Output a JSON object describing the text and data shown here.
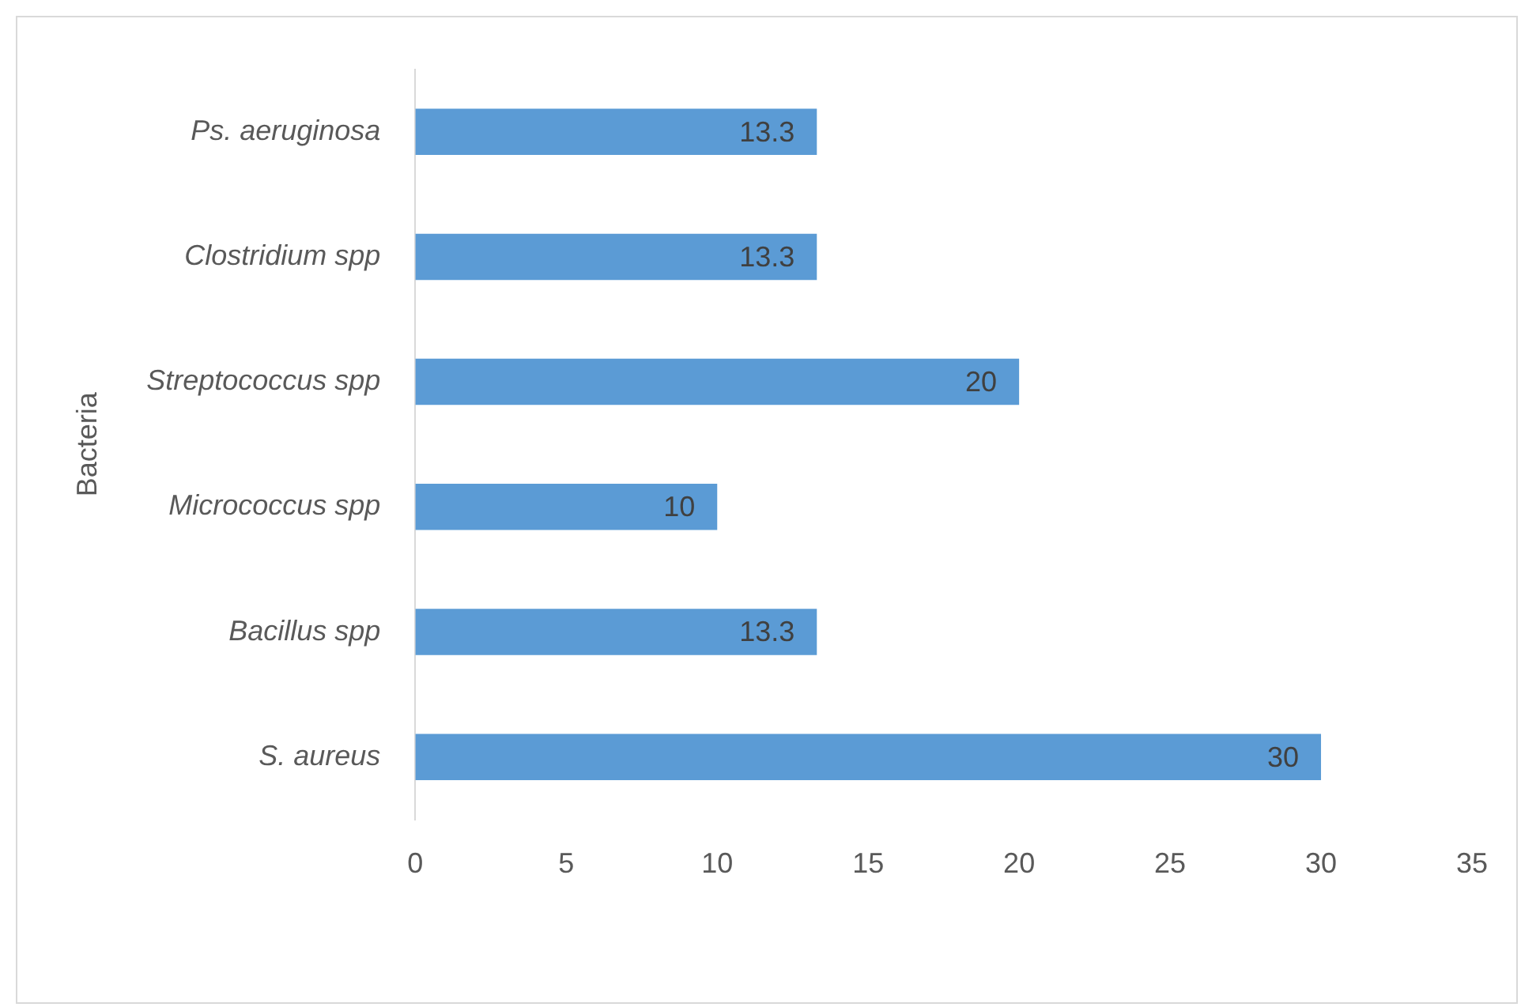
{
  "chart_data": {
    "type": "bar",
    "orientation": "horizontal",
    "ylabel": "Bacteria",
    "categories": [
      "Ps. aeruginosa",
      "Clostridium spp",
      "Streptococcus spp",
      "Micrococcus spp",
      "Bacillus spp",
      "S. aureus"
    ],
    "values": [
      13.3,
      13.3,
      20,
      10,
      13.3,
      30
    ],
    "color": "#5b9bd5",
    "xlim": [
      0,
      35
    ],
    "xticks": [
      0,
      5,
      10,
      15,
      20,
      25,
      30,
      35
    ],
    "data_labels": true
  }
}
